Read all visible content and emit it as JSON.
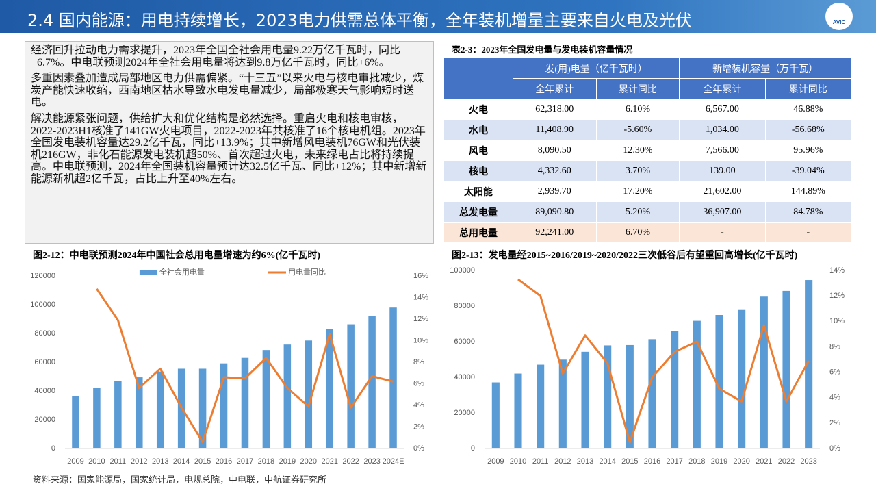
{
  "header": {
    "title": "2.4 国内能源：用电持续增长，2023电力供需总体平衡，全年装机增量主要来自火电及光伏",
    "logo": "AVIC"
  },
  "text": {
    "paragraphs": [
      "经济回升拉动电力需求提升，2023年全国全社会用电量9.22万亿千瓦时，同比+6.7%。中电联预测2024年全社会用电量将达到9.8万亿千瓦时，同比+6%。",
      "多重因素叠加造成局部地区电力供需偏紧。“十三五”以来火电与核电审批减少，煤炭产能快速收缩，西南地区枯水导致水电发电量减少，局部极寒天气影响短时送电。",
      "解决能源紧张问题，供给扩大和优化结构是必然选择。重启火电和核电审核，2022-2023H1核准了141GW火电项目，2022-2023年共核准了16个核电机组。2023年全国发电装机容量达29.2亿千瓦，同比+13.9%；其中新增风电装机76GW和光伏装机216GW，非化石能源发电装机超50%、首次超过火电，未来绿电占比将持续提高。中电联预测，2024年全国装机容量预计达32.5亿千瓦、同比+12%；其中新增新能源新机超2亿千瓦，占比上升至40%左右。"
    ]
  },
  "table": {
    "caption": "表2-3：2023年全国发电量与发电装机容量情况",
    "header_groups": [
      "发(用)电量（亿千瓦时）",
      "新增装机容量（万千瓦）"
    ],
    "subheaders": [
      "全年累计",
      "累计同比",
      "全年累计",
      "累计同比"
    ],
    "rows": [
      [
        "火电",
        "62,318.00",
        "6.10%",
        "6,567.00",
        "46.88%"
      ],
      [
        "水电",
        "11,408.90",
        "-5.60%",
        "1,034.00",
        "-56.68%"
      ],
      [
        "风电",
        "8,090.50",
        "12.30%",
        "7,566.00",
        "95.96%"
      ],
      [
        "核电",
        "4,332.60",
        "3.70%",
        "139.00",
        "-39.04%"
      ],
      [
        "太阳能",
        "2,939.70",
        "17.20%",
        "21,602.00",
        "144.89%"
      ],
      [
        "总发电量",
        "89,090.80",
        "5.20%",
        "36,907.00",
        "84.78%"
      ],
      [
        "总用电量",
        "92,241.00",
        "6.70%",
        "-",
        "-"
      ]
    ]
  },
  "chart_data": [
    {
      "type": "bar-line",
      "title": "图2-12：中电联预测2024年中国社会总用电量增速为约6%(亿千瓦时)",
      "categories": [
        "2009",
        "2010",
        "2011",
        "2012",
        "2013",
        "2014",
        "2015",
        "2016",
        "2017",
        "2018",
        "2019",
        "2020",
        "2021",
        "2022",
        "2023",
        "2024E"
      ],
      "series": [
        {
          "name": "全社会用电量",
          "type": "bar",
          "color": "#5b9bd5",
          "values": [
            36500,
            42000,
            47000,
            49500,
            53500,
            55500,
            55500,
            59200,
            63000,
            68500,
            72300,
            75100,
            83100,
            86400,
            92200,
            98000
          ]
        },
        {
          "name": "用电量同比",
          "type": "line",
          "axis": "y2",
          "color": "#ed7d31",
          "values": [
            null,
            14.8,
            11.9,
            5.6,
            7.4,
            3.8,
            0.6,
            6.6,
            6.5,
            8.4,
            5.6,
            3.9,
            10.6,
            3.8,
            6.7,
            6.2
          ]
        }
      ],
      "ylim": [
        0,
        120000
      ],
      "yticks": [
        0,
        20000,
        40000,
        60000,
        80000,
        100000,
        120000
      ],
      "y2lim": [
        0,
        16
      ],
      "y2ticks": [
        {
          "value": 0,
          "label": "0%"
        },
        {
          "value": 2,
          "label": "2%"
        },
        {
          "value": 4,
          "label": "4%"
        },
        {
          "value": 6,
          "label": "6%"
        },
        {
          "value": 8,
          "label": "8%"
        },
        {
          "value": 10,
          "label": "10%"
        },
        {
          "value": 12,
          "label": "12%"
        },
        {
          "value": 14,
          "label": "14%"
        },
        {
          "value": 16,
          "label": "16%"
        }
      ],
      "legend": "top",
      "grid": false
    },
    {
      "type": "bar-line",
      "title": "图2-13：发电量经2015~2016/2019~2020/2022三次低谷后有望重回高增长(亿千瓦时)",
      "categories": [
        "2009",
        "2010",
        "2011",
        "2012",
        "2013",
        "2014",
        "2015",
        "2016",
        "2017",
        "2018",
        "2019",
        "2020",
        "2021",
        "2022",
        "2023"
      ],
      "series": [
        {
          "type": "bar",
          "color": "#5b9bd5",
          "values": [
            37100,
            42100,
            47100,
            49900,
            54300,
            57900,
            58100,
            61400,
            66000,
            71700,
            75000,
            77800,
            85300,
            88500,
            94600
          ]
        },
        {
          "type": "line",
          "axis": "y2",
          "color": "#ed7d31",
          "values": [
            null,
            13.3,
            12.0,
            5.9,
            8.9,
            6.7,
            0.5,
            5.6,
            7.6,
            8.4,
            4.7,
            3.7,
            9.7,
            3.7,
            6.9
          ]
        }
      ],
      "ylim": [
        0,
        100000
      ],
      "yticks": [
        0,
        20000,
        40000,
        60000,
        80000,
        100000
      ],
      "y2lim": [
        0,
        14
      ],
      "y2ticks": [
        {
          "value": 0,
          "label": "0%"
        },
        {
          "value": 2,
          "label": "2%"
        },
        {
          "value": 4,
          "label": "4%"
        },
        {
          "value": 6,
          "label": "6%"
        },
        {
          "value": 8,
          "label": "8%"
        },
        {
          "value": 10,
          "label": "10%"
        },
        {
          "value": 12,
          "label": "12%"
        },
        {
          "value": 14,
          "label": "14%"
        }
      ],
      "grid": false
    }
  ],
  "source": "资料来源：国家能源局，国家统计局，电规总院，中电联，中航证券研究所"
}
